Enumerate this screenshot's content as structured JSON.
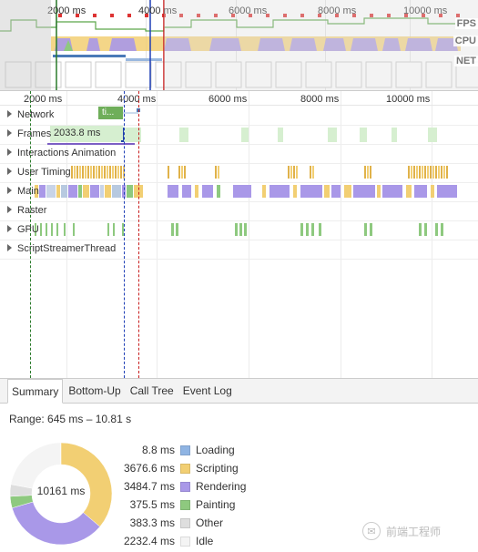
{
  "overview": {
    "ticks": [
      "2000 ms",
      "4000 ms",
      "6000 ms",
      "8000 ms",
      "10000 ms"
    ],
    "lane_labels": {
      "fps": "FPS",
      "cpu": "CPU",
      "net": "NET"
    }
  },
  "timeline": {
    "ticks": [
      "2000 ms",
      "4000 ms",
      "6000 ms",
      "8000 ms",
      "10000 ms"
    ],
    "tracks": [
      {
        "key": "network",
        "label": "Network"
      },
      {
        "key": "frames",
        "label": "Frames"
      },
      {
        "key": "interactions",
        "label": "Interactions  Animation"
      },
      {
        "key": "user_timing",
        "label": "User Timing"
      },
      {
        "key": "main",
        "label": "Main"
      },
      {
        "key": "raster",
        "label": "Raster"
      },
      {
        "key": "gpu",
        "label": "GPU"
      },
      {
        "key": "script_streamer",
        "label": "ScriptStreamerThread"
      }
    ],
    "network_chip_text": "ti...",
    "frame_label": "2033.8 ms"
  },
  "bottom_panel": {
    "tabs": [
      "Summary",
      "Bottom-Up",
      "Call Tree",
      "Event Log"
    ],
    "active_tab": "Summary",
    "range_text": "Range: 645 ms – 10.81 s",
    "total_text": "10161 ms",
    "watermark_text": "前端工程师"
  },
  "chart_data": {
    "type": "pie",
    "variant": "donut",
    "categories": [
      "Loading",
      "Scripting",
      "Rendering",
      "Painting",
      "Other",
      "Idle"
    ],
    "values": [
      8.8,
      3676.6,
      3484.7,
      375.5,
      383.3,
      2232.4
    ],
    "value_labels": [
      "8.8 ms",
      "3676.6 ms",
      "3484.7 ms",
      "375.5 ms",
      "383.3 ms",
      "2232.4 ms"
    ],
    "colors": [
      "#8fb4e3",
      "#f2cf73",
      "#a998e8",
      "#8ec97f",
      "#dedede",
      "#f4f4f4"
    ],
    "total": "10161 ms",
    "title": "",
    "legend_position": "right"
  },
  "colors": {
    "scripting": "#f2cf73",
    "rendering": "#a998e8",
    "painting": "#8ec97f",
    "frames_green": "#d6efd0",
    "network_chip": "#6fae5a",
    "marker_green": "#2a7a2a",
    "marker_blue": "#1f3fb6",
    "marker_red": "#c81e1e"
  }
}
